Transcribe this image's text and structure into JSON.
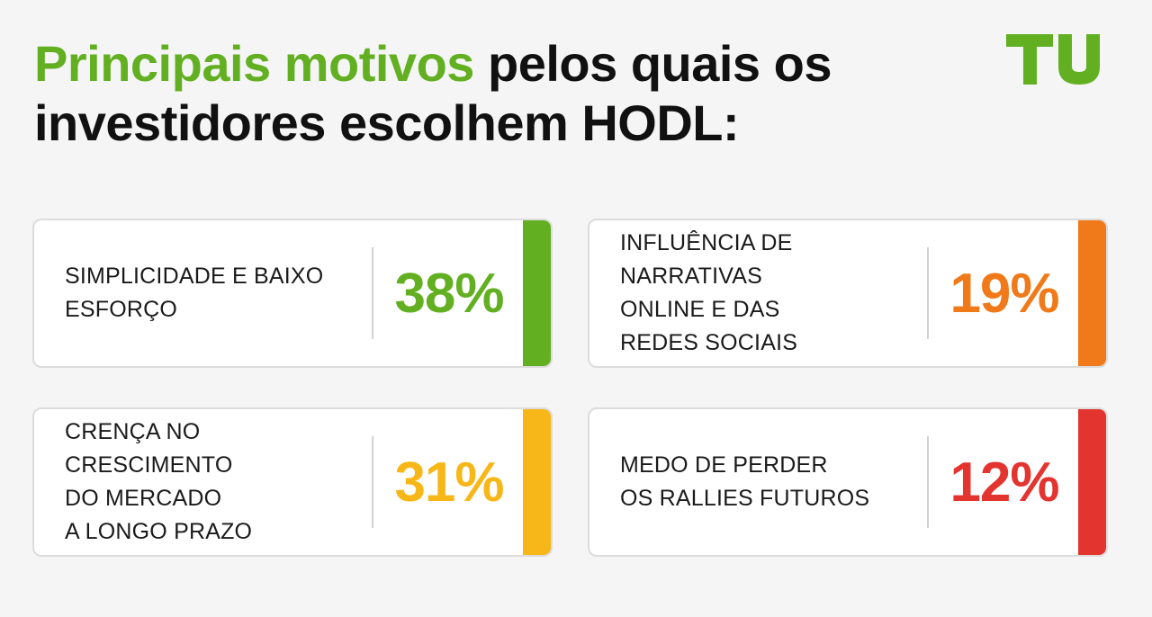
{
  "title": {
    "highlight": "Principais motivos",
    "rest": " pelos quais os investidores escolhem HODL:"
  },
  "logo": {
    "text": "TU",
    "icon": "tu-logo-icon",
    "color": "#62b022"
  },
  "colors": {
    "title_accent": "#62b022",
    "title_text": "#111111"
  },
  "cards": [
    {
      "label": "SIMPLICIDADE E BAIXO\nESFORÇO",
      "value": "38%",
      "percent": 38,
      "color": "#62b022"
    },
    {
      "label": "INFLUÊNCIA DE NARRATIVAS\nONLINE E DAS\nREDES SOCIAIS",
      "value": "19%",
      "percent": 19,
      "color": "#f07a1a"
    },
    {
      "label": "CRENÇA NO CRESCIMENTO\nDO MERCADO\nA LONGO PRAZO",
      "value": "31%",
      "percent": 31,
      "color": "#f7b718"
    },
    {
      "label": "MEDO DE PERDER\nOS RALLIES FUTUROS",
      "value": "12%",
      "percent": 12,
      "color": "#e3342f"
    }
  ]
}
